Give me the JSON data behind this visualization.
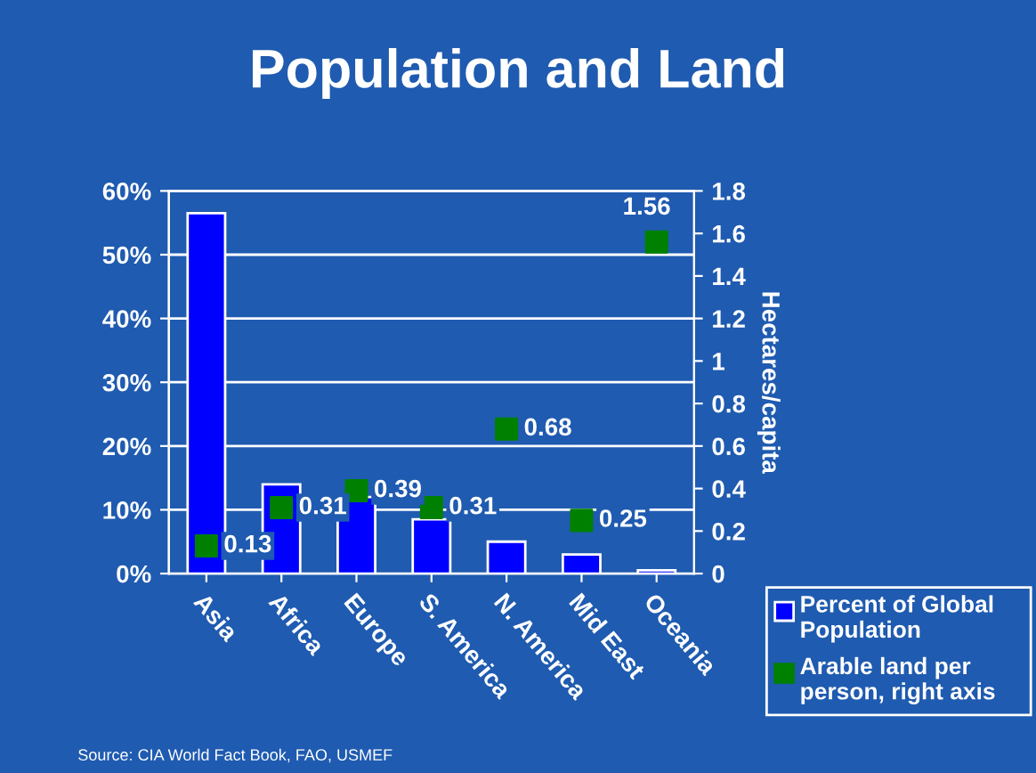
{
  "chart_data": {
    "type": "bar",
    "title": "Population and Land",
    "y2label": "Hectares/capita",
    "categories": [
      "Asia",
      "Africa",
      "Europe",
      "S. America",
      "N. America",
      "Mid East",
      "Oceania"
    ],
    "series": [
      {
        "name": "Percent of Global Population",
        "color": "#0000ff",
        "values": [
          56.5,
          14,
          12,
          8.5,
          5,
          3,
          0.5
        ]
      },
      {
        "name": "Arable land per person, right axis",
        "type": "scatter",
        "axis": "y2",
        "color": "#008000",
        "marker": "square",
        "values": [
          0.13,
          0.31,
          0.39,
          0.31,
          0.68,
          0.25,
          1.56
        ],
        "value_labels": [
          "0.13",
          "0.31",
          "0.39",
          "0.31",
          "0.68",
          "0.25",
          "1.56"
        ]
      }
    ],
    "ylim": [
      0,
      60
    ],
    "yticks": [
      {
        "value": 0,
        "label": "0%"
      },
      {
        "value": 10,
        "label": "10%"
      },
      {
        "value": 20,
        "label": "20%"
      },
      {
        "value": 30,
        "label": "30%"
      },
      {
        "value": 40,
        "label": "40%"
      },
      {
        "value": 50,
        "label": "50%"
      },
      {
        "value": 60,
        "label": "60%"
      }
    ],
    "y2lim": [
      0,
      1.8
    ],
    "y2ticks": [
      0,
      0.2,
      0.4,
      0.6,
      0.8,
      1,
      1.2,
      1.4,
      1.6,
      1.8
    ],
    "grid": "y",
    "legend": "bottom right",
    "annotations": [
      "Source: CIA World Fact Book, FAO, USMEF"
    ]
  }
}
